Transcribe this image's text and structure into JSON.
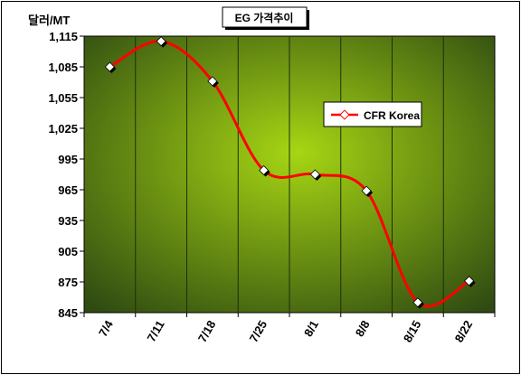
{
  "chart_data": {
    "type": "line",
    "title": "EG 가격추이",
    "ylabel": "달러/MT",
    "xlabel": "",
    "categories": [
      "7/4",
      "7/11",
      "7/18",
      "7/25",
      "8/1",
      "8/8",
      "8/15",
      "8/22"
    ],
    "series": [
      {
        "name": "CFR Korea",
        "values": [
          1085,
          1110,
          1071,
          984,
          980,
          964,
          855,
          876
        ],
        "color": "#ff0000"
      }
    ],
    "ylim": [
      845,
      1115
    ],
    "yticks": [
      "1,115",
      "1,085",
      "1,055",
      "1,025",
      "995",
      "965",
      "935",
      "905",
      "875",
      "845"
    ],
    "ytick_values": [
      1115,
      1085,
      1055,
      1025,
      995,
      965,
      935,
      905,
      875,
      845
    ],
    "grid": true,
    "smooth": true,
    "legend_position": "right",
    "colors": {
      "plot_gradient_light": "#a6d613",
      "plot_gradient_dark": "#2f4a12",
      "line": "#ff0000",
      "marker_fill": "#ffffff",
      "marker_shadow": "#000000"
    }
  }
}
